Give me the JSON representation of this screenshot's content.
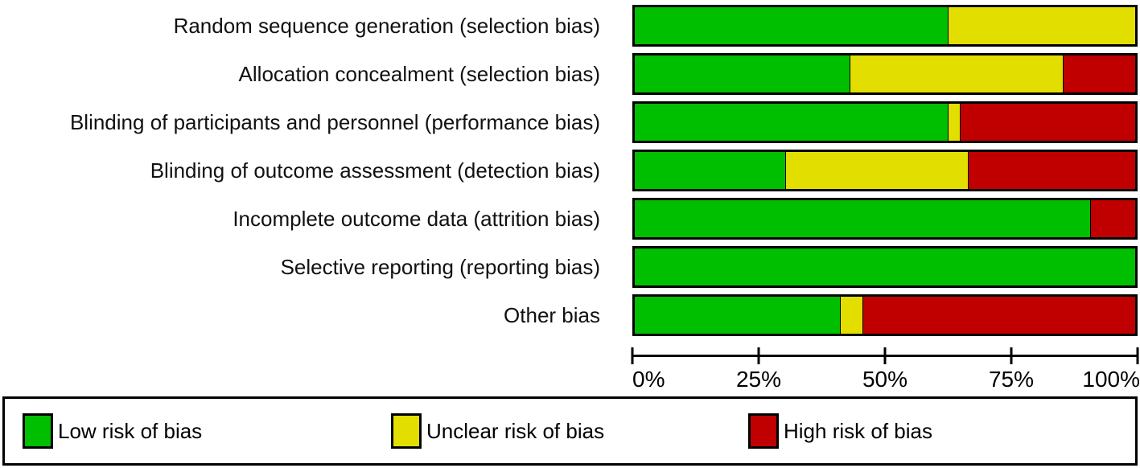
{
  "chart_data": {
    "type": "bar",
    "orientation": "horizontal",
    "stacked": true,
    "title": "",
    "xlabel": "",
    "ylabel": "",
    "unit": "percent of studies",
    "grid": false,
    "legend_position": "bottom",
    "categories": [
      "Random sequence generation (selection bias)",
      "Allocation concealment (selection bias)",
      "Blinding of participants and personnel (performance bias)",
      "Blinding of outcome assessment (detection bias)",
      "Incomplete outcome data (attrition bias)",
      "Selective reporting (reporting bias)",
      "Other bias"
    ],
    "series": [
      {
        "name": "Low risk of bias",
        "color": "#00BE00",
        "values": [
          62.5,
          43.0,
          62.5,
          30.0,
          91.0,
          100.0,
          41.0
        ]
      },
      {
        "name": "Unclear risk of bias",
        "color": "#E2DE00",
        "values": [
          37.5,
          42.5,
          2.5,
          36.5,
          0.0,
          0.0,
          4.5
        ]
      },
      {
        "name": "High risk of bias",
        "color": "#C00000",
        "values": [
          0.0,
          14.5,
          35.0,
          33.5,
          9.0,
          0.0,
          54.5
        ]
      }
    ],
    "x_axis": {
      "range": [
        0,
        100
      ],
      "tick_values": [
        0,
        25,
        50,
        75,
        100
      ],
      "tick_labels": [
        "0%",
        "25%",
        "50%",
        "75%",
        "100%"
      ]
    }
  },
  "legend": {
    "items": [
      {
        "label": "Low risk of bias",
        "color": "#00BE00"
      },
      {
        "label": "Unclear risk of bias",
        "color": "#E2DE00"
      },
      {
        "label": "High risk of bias",
        "color": "#C00000"
      }
    ]
  }
}
